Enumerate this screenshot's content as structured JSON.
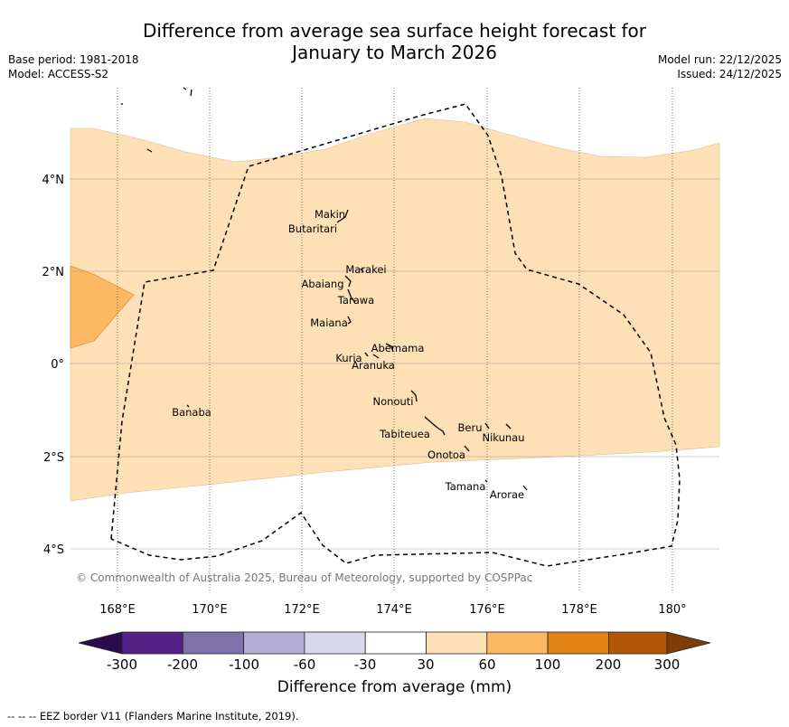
{
  "header": {
    "title_line1": "Difference from average sea surface height forecast for",
    "title_line2": "January to March 2026",
    "base_period": "Base period: 1981-2018",
    "model": "Model: ACCESS-S2",
    "model_run": "Model run: 22/12/2025",
    "issued": "Issued: 24/12/2025"
  },
  "map": {
    "lat_labels": [
      "4°N",
      "2°N",
      "0°",
      "2°S",
      "4°S"
    ],
    "lon_labels": [
      "168°E",
      "170°E",
      "172°E",
      "174°E",
      "176°E",
      "178°E",
      "180°"
    ],
    "islands": [
      "Makin",
      "Butaritari",
      "Marakei",
      "Abaiang",
      "Tarawa",
      "Maiana",
      "Abemama",
      "Kuria",
      "Aranuka",
      "Banaba",
      "Nonouti",
      "Beru",
      "Nikunau",
      "Tabiteuea",
      "Onotoa",
      "Tamana",
      "Arorae"
    ],
    "copyright": "© Commonwealth of Australia 2025, Bureau of Meteorology, supported by COSPPac"
  },
  "colorbar": {
    "ticks": [
      "-300",
      "-200",
      "-100",
      "-60",
      "-30",
      "30",
      "60",
      "100",
      "200",
      "300"
    ],
    "colors": [
      "#2d0a4a",
      "#542286",
      "#8073ac",
      "#b2abd2",
      "#d8daeb",
      "#ffffff",
      "#fee0b6",
      "#fdb863",
      "#e08214",
      "#b35806",
      "#7f3b08"
    ],
    "label": "Difference from average (mm)"
  },
  "footnote": "--  --  -- EEZ border V11 (Flanders Marine Institute, 2019)."
}
